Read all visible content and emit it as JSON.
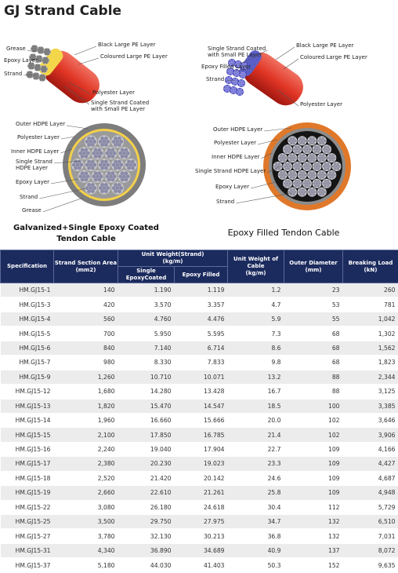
{
  "header": {
    "title": "GJ Strand Cable"
  },
  "diagrams": [
    {
      "labels": [
        [
          "Grease"
        ],
        [
          "Epoxy Layer"
        ],
        [
          "Strand"
        ],
        [
          "Black Large PE Layer"
        ],
        [
          "Coloured Large PE Layer"
        ],
        [
          "Polyester Layer"
        ],
        [
          "Single Strand Coated",
          "with Small PE Layer"
        ]
      ]
    },
    {
      "labels": [
        [
          "Single Strand Coated",
          "with Small PE Layer"
        ],
        [
          "Black Large PE Layer"
        ],
        [
          "Coloured Large PE Layer"
        ],
        [
          "Epoxy Filled Layer"
        ],
        [
          "Strand"
        ],
        [
          "Polyester Layer"
        ]
      ]
    },
    {
      "labels": [
        [
          "Outer HDPE Layer"
        ],
        [
          "Polyester Layer"
        ],
        [
          "Inner HDPE Layer"
        ],
        [
          "Single Strand",
          "HDPE Layer"
        ],
        [
          "Epoxy Layer"
        ],
        [
          "Strand"
        ],
        [
          "Grease"
        ]
      ]
    },
    {
      "labels": [
        [
          "Outer HDPE Layer"
        ],
        [
          "Polyester Layer"
        ],
        [
          "Inner HDPE Layer"
        ],
        [
          "Single Strand HDPE Layer"
        ],
        [
          "Epoxy Layer"
        ],
        [
          "Strand"
        ]
      ]
    }
  ],
  "captions": [
    [
      "Galvanized+Single Epoxy Coated",
      "Tendon Cable"
    ],
    [
      "Epoxy Filled Tendon Cable"
    ]
  ],
  "table": {
    "header": {
      "specification": [
        "Specification"
      ],
      "strand_section_area": [
        "Strand Section Area",
        "(mm2)"
      ],
      "unit_weight_strand": [
        "Unit Weight(Strand)",
        "(kg/m)"
      ],
      "single_epoxy": [
        "Single EpoxyCoated"
      ],
      "epoxy_filled": [
        "Epoxy Filled"
      ],
      "unit_weight_cable": [
        "Unit Weight of",
        "Cable",
        "(kg/m)"
      ],
      "outer_diameter": [
        "Outer Diameter",
        "(mm)"
      ],
      "breaking_load": [
        "Breaking Load",
        "(kN)"
      ]
    },
    "rows": [
      [
        "HM.GJ15-1",
        "140",
        "1.190",
        "1.119",
        "1.2",
        "23",
        "260"
      ],
      [
        "HM.GJ15-3",
        "420",
        "3.570",
        "3.357",
        "4.7",
        "53",
        "781"
      ],
      [
        "HM.GJ15-4",
        "560",
        "4.760",
        "4.476",
        "5.9",
        "55",
        "1,042"
      ],
      [
        "HM.GJ15-5",
        "700",
        "5.950",
        "5.595",
        "7.3",
        "68",
        "1,302"
      ],
      [
        "HM.GJ15-6",
        "840",
        "7.140",
        "6.714",
        "8.6",
        "68",
        "1,562"
      ],
      [
        "HM.GJ15-7",
        "980",
        "8.330",
        "7.833",
        "9.8",
        "68",
        "1,823"
      ],
      [
        "HM.GJ15-9",
        "1,260",
        "10.710",
        "10.071",
        "13.2",
        "88",
        "2,344"
      ],
      [
        "HM.GJ15-12",
        "1,680",
        "14.280",
        "13.428",
        "16.7",
        "88",
        "3,125"
      ],
      [
        "HM.GJ15-13",
        "1,820",
        "15.470",
        "14.547",
        "18.5",
        "100",
        "3,385"
      ],
      [
        "HM.GJ15-14",
        "1,960",
        "16.660",
        "15.666",
        "20.0",
        "102",
        "3,646"
      ],
      [
        "HM.GJ15-15",
        "2,100",
        "17.850",
        "16.785",
        "21.4",
        "102",
        "3,906"
      ],
      [
        "HM.GJ15-16",
        "2,240",
        "19.040",
        "17.904",
        "22.7",
        "109",
        "4,166"
      ],
      [
        "HM.GJ15-17",
        "2,380",
        "20.230",
        "19.023",
        "23.3",
        "109",
        "4,427"
      ],
      [
        "HM.GJ15-18",
        "2,520",
        "21.420",
        "20.142",
        "24.6",
        "109",
        "4,687"
      ],
      [
        "HM.GJ15-19",
        "2,660",
        "22.610",
        "21.261",
        "25.8",
        "109",
        "4,948"
      ],
      [
        "HM.GJ15-22",
        "3,080",
        "26.180",
        "24.618",
        "30.4",
        "112",
        "5,729"
      ],
      [
        "HM.GJ15-25",
        "3,500",
        "29.750",
        "27.975",
        "34.7",
        "132",
        "6,510"
      ],
      [
        "HM.GJ15-27",
        "3,780",
        "32.130",
        "30.213",
        "36.8",
        "132",
        "7,031"
      ],
      [
        "HM.GJ15-31",
        "4,340",
        "36.890",
        "34.689",
        "40.9",
        "137",
        "8,072"
      ],
      [
        "HM.GJ15-37",
        "5,180",
        "44.030",
        "41.403",
        "50.3",
        "152",
        "9,635"
      ]
    ]
  }
}
